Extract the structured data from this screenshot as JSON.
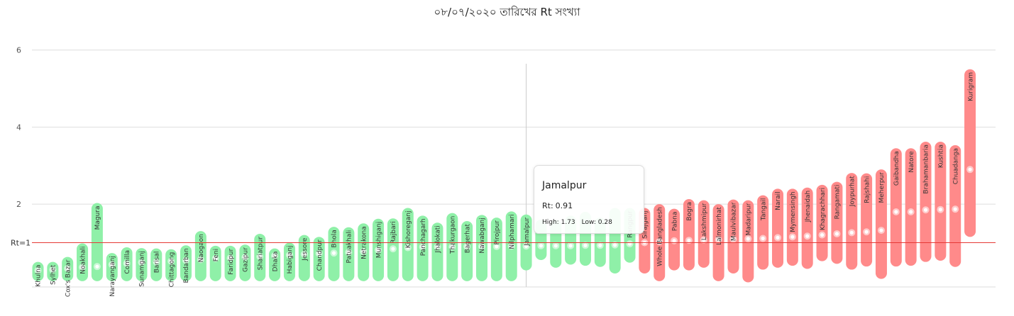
{
  "title": "০৮/০৭/২০২০ তারিখের Rt সংখ্যা",
  "colors": {
    "below": "#8ff0a8",
    "above": "#ff8a8a",
    "threshold": "#e53935",
    "grid": "#dedede",
    "axis_text": "#555555"
  },
  "threshold_label": "Rt=1",
  "tooltip": {
    "title": "Jamalpur",
    "rt_label": "Rt:",
    "rt_value": "0.91",
    "high_label": "High:",
    "high_value": "1.73",
    "low_label": "Low:",
    "low_value": "0.28"
  },
  "chart_data": {
    "type": "error-bar",
    "title": "০৮/০৭/২০২০ তারিখের Rt সংখ্যা",
    "xlabel": "",
    "ylabel": "",
    "ylim": [
      -0.15,
      6.6
    ],
    "yticks": [
      2,
      4,
      6
    ],
    "grid": true,
    "reference_line": {
      "y": 1,
      "label": "Rt=1"
    },
    "categories": [
      "Khulna",
      "Sylhet",
      "Cox's Bazar",
      "Noakhali",
      "Magura",
      "Narayanganj",
      "Comilla",
      "Sunamganj",
      "Barisal",
      "Chittagong",
      "Bandarban",
      "Naogaon",
      "Feni",
      "Faridpur",
      "Gazipur",
      "Shariatpur",
      "Dhaka",
      "Habiganj",
      "Jessore",
      "Chandpur",
      "Bhola",
      "Patuakhali",
      "Netrakona",
      "Munshiganj",
      "Rajbari",
      "Kishoreganj",
      "Panchagarh",
      "Jhalokati",
      "Thakurgaon",
      "Bagerhat",
      "Nawabganj",
      "Pirojpur",
      "Nilphamari",
      "Jamalpur",
      "",
      "",
      "",
      "",
      "",
      "",
      "Rangpur",
      "Sirajganj",
      "Whole Bangladesh",
      "Pabna",
      "Bogra",
      "Lakshmipur",
      "Lalmonirhat",
      "Maulvibazar",
      "Madaripur",
      "Tangail",
      "Narail",
      "Mymensingh",
      "Jhenaidah",
      "Khagrachhari",
      "Rangamati",
      "Joypurhat",
      "Rajshahi",
      "Meherpur",
      "Gaibandha",
      "Natore",
      "Brahamanbaria",
      "Kushtia",
      "Chuadanga",
      "Kurigram"
    ],
    "series": [
      {
        "values": [
          0.28,
          0.3,
          0.33,
          0.36,
          0.38,
          0.43,
          0.46,
          0.49,
          0.5,
          0.52,
          0.54,
          0.56,
          0.59,
          0.6,
          0.62,
          0.64,
          0.66,
          0.68,
          0.7,
          0.72,
          0.73,
          0.75,
          0.77,
          0.81,
          0.84,
          0.87,
          0.89,
          0.89,
          0.89,
          0.9,
          0.9,
          0.9,
          0.91,
          0.91,
          0.92,
          0.92,
          0.92,
          0.93,
          0.93,
          0.94,
          0.97,
          1.0,
          1.03,
          1.05,
          1.06,
          1.07,
          1.08,
          1.09,
          1.1,
          1.11,
          1.13,
          1.15,
          1.17,
          1.2,
          1.23,
          1.26,
          1.28,
          1.32,
          1.8,
          1.8,
          1.85,
          1.86,
          1.87,
          2.9
        ]
      },
      {
        "name": "High",
        "values": [
          0.5,
          0.5,
          0.63,
          0.98,
          2.03,
          0.73,
          0.88,
          0.86,
          0.85,
          0.83,
          0.93,
          1.3,
          0.92,
          0.92,
          0.95,
          1.23,
          0.85,
          1.0,
          1.2,
          1.15,
          1.41,
          1.4,
          1.5,
          1.62,
          1.63,
          1.9,
          1.7,
          1.52,
          1.77,
          1.56,
          1.72,
          1.65,
          1.81,
          1.73,
          1.6,
          1.6,
          1.7,
          1.8,
          1.65,
          1.9,
          1.9,
          1.9,
          2.0,
          1.88,
          2.13,
          2.1,
          2.0,
          2.12,
          2.1,
          2.23,
          2.4,
          2.4,
          2.43,
          2.5,
          2.58,
          2.81,
          2.8,
          2.9,
          3.45,
          3.45,
          3.62,
          3.62,
          3.53,
          5.5
        ]
      },
      {
        "name": "Low",
        "values": [
          0.0,
          0.0,
          0.0,
          0.0,
          0.0,
          0.0,
          0.0,
          0.0,
          0.0,
          0.0,
          0.0,
          0.0,
          0.0,
          0.0,
          0.0,
          0.0,
          0.0,
          0.0,
          0.0,
          0.0,
          0.0,
          0.0,
          0.0,
          0.0,
          0.0,
          0.0,
          0.0,
          0.0,
          0.0,
          0.0,
          0.0,
          0.0,
          0.0,
          0.28,
          0.55,
          0.35,
          0.43,
          0.4,
          0.37,
          0.2,
          0.48,
          0.2,
          0.0,
          0.28,
          0.28,
          0.35,
          0.0,
          0.2,
          -0.03,
          0.3,
          0.35,
          0.4,
          0.32,
          0.52,
          0.45,
          0.3,
          0.38,
          0.06,
          0.38,
          0.4,
          0.5,
          0.53,
          0.37,
          1.15
        ]
      }
    ]
  }
}
